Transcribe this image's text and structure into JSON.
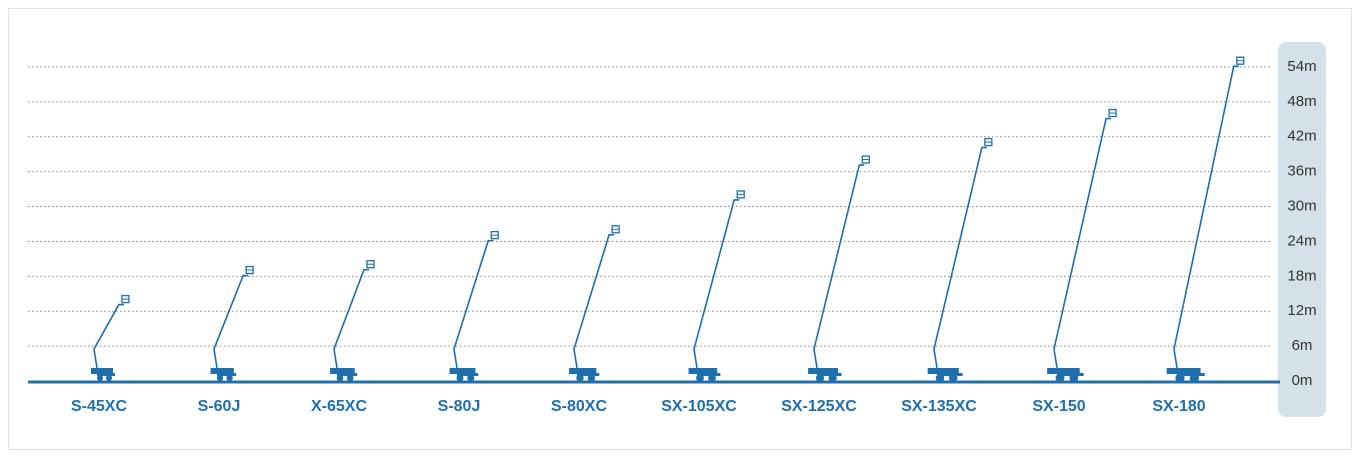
{
  "chart_data": {
    "type": "lift",
    "categories": [
      "S-45XC",
      "S-60J",
      "X-65XC",
      "S-80J",
      "S-80XC",
      "SX-105XC",
      "SX-125XC",
      "SX-135XC",
      "SX-150",
      "SX-180"
    ],
    "values": [
      14,
      19,
      20,
      25,
      26,
      32,
      38,
      41,
      46,
      55
    ],
    "color": "#1f6fad",
    "ylim": [
      0,
      54
    ],
    "yticks": [
      {
        "value": 0,
        "label": "0m"
      },
      {
        "value": 6,
        "label": "6m"
      },
      {
        "value": 12,
        "label": "12m"
      },
      {
        "value": 18,
        "label": "18m"
      },
      {
        "value": 24,
        "label": "24m"
      },
      {
        "value": 30,
        "label": "30m"
      },
      {
        "value": 36,
        "label": "36m"
      },
      {
        "value": 42,
        "label": "42m"
      },
      {
        "value": 48,
        "label": "48m"
      },
      {
        "value": 54,
        "label": "54m"
      }
    ],
    "grid": true
  }
}
